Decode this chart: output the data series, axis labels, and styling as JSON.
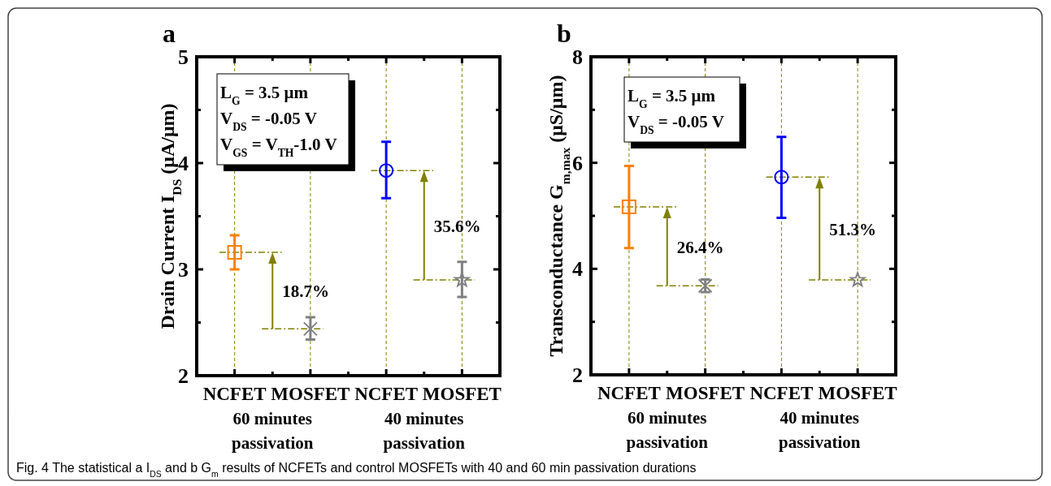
{
  "chart_data": [
    {
      "type": "scatter",
      "title": "a",
      "ylabel": "Drain Current I$_{DS}$ (μA/μm)",
      "categories": [
        "NCFET",
        "MOSFET",
        "NCFET",
        "MOSFET"
      ],
      "ylim": [
        2,
        5
      ],
      "yticks": [
        2,
        {
          "value": 2.5,
          "label": null
        },
        3,
        {
          "value": 3.5,
          "label": null
        },
        4,
        {
          "value": 4.5,
          "label": null
        },
        5
      ],
      "grid": "x",
      "series": [
        {
          "color": "#ff7f00",
          "marker": "square",
          "values": [
            3.16,
            null,
            null,
            null
          ],
          "errors": [
            [
              3.0,
              3.32
            ],
            null,
            null,
            null
          ]
        },
        {
          "color": "#808080",
          "marker": "cross",
          "values": [
            null,
            2.44,
            null,
            null
          ],
          "errors": [
            null,
            [
              2.34,
              2.55
            ],
            null,
            null
          ]
        },
        {
          "color": "#0000ff",
          "marker": "circle",
          "values": [
            null,
            null,
            3.93,
            null
          ],
          "errors": [
            null,
            null,
            [
              3.67,
              4.2
            ],
            null
          ]
        },
        {
          "color": "#808080",
          "marker": "star",
          "values": [
            null,
            null,
            null,
            2.9
          ],
          "errors": [
            null,
            null,
            null,
            [
              2.74,
              3.07
            ]
          ]
        }
      ],
      "annotations": [
        "18.7%",
        "35.6%",
        "60 minutes passivation",
        "40 minutes passivation",
        "L$_{G}$ = 3.5 μm",
        "V$_{DS}$ = -0.05 V",
        "V$_{GS}$ = V$_{TH}$-1.0 V"
      ]
    },
    {
      "type": "scatter",
      "title": "b",
      "ylabel": "Transconductance G$_{m,max}$ (μS/μm)",
      "categories": [
        "NCFET",
        "MOSFET",
        "NCFET",
        "MOSFET"
      ],
      "ylim": [
        2,
        8
      ],
      "yticks": [
        2,
        {
          "value": 3,
          "label": null
        },
        4,
        {
          "value": 5,
          "label": null
        },
        6,
        {
          "value": 7,
          "label": null
        },
        8
      ],
      "grid": "x",
      "series": [
        {
          "color": "#ff7f00",
          "marker": "square",
          "values": [
            5.17,
            null,
            null,
            null
          ],
          "errors": [
            [
              4.39,
              5.94
            ],
            null,
            null,
            null
          ]
        },
        {
          "color": "#808080",
          "marker": "cross",
          "values": [
            null,
            3.68,
            null,
            null
          ],
          "errors": [
            null,
            [
              3.56,
              3.8
            ],
            null,
            null
          ]
        },
        {
          "color": "#0000ff",
          "marker": "circle",
          "values": [
            null,
            null,
            5.73,
            null
          ],
          "errors": [
            null,
            null,
            [
              4.96,
              6.49
            ],
            null
          ]
        },
        {
          "color": "#808080",
          "marker": "star",
          "values": [
            null,
            null,
            null,
            3.79
          ]
        }
      ],
      "annotations": [
        "26.4%",
        "51.3%",
        "60 minutes passivation",
        "40 minutes passivation",
        "L$_{G}$ = 3.5 μm",
        "V$_{DS}$ = -0.05 V"
      ]
    },
    {
      "type": "other",
      "annotations": [
        "Fig. 4 The statistical a I$_{DS}$ and b G$_{m}$ results of NCFETs and control MOSFETs with 40 and 60 min passivation durations"
      ]
    }
  ]
}
